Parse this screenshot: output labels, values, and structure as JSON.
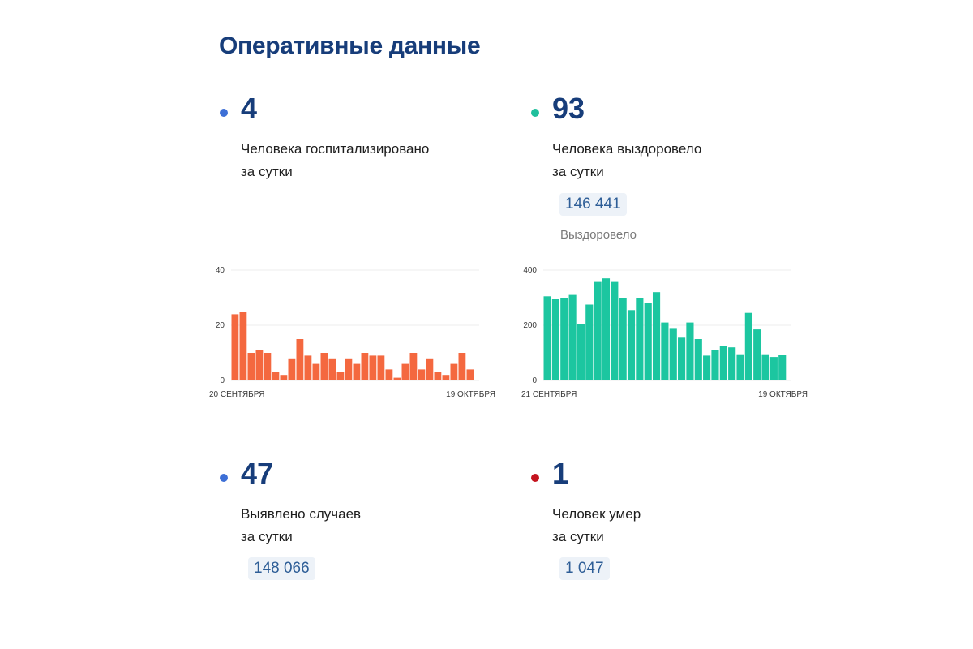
{
  "page_title": "Оперативные данные",
  "colors": {
    "blue_dot": "#3d6fd6",
    "teal_dot": "#1fbf9c",
    "red_dot": "#c4141e",
    "orange_bar": "#f4683f",
    "teal_bar": "#1cc6a0",
    "grid": "#ececec"
  },
  "hospitalized": {
    "value": "4",
    "desc_line1": "Человека госпитализировано",
    "desc_line2": "за сутки"
  },
  "recovered": {
    "value": "93",
    "desc_line1": "Человека выздоровело",
    "desc_line2": "за сутки",
    "total": "146 441",
    "total_label": "Выздоровело"
  },
  "cases": {
    "value": "47",
    "desc_line1": "Выявлено случаев",
    "desc_line2": "за сутки",
    "total": "148 066"
  },
  "deaths": {
    "value": "1",
    "desc_line1": "Человек умер",
    "desc_line2": "за сутки",
    "total": "1 047"
  },
  "chart_data": [
    {
      "type": "bar",
      "title": "",
      "x_start_label": "20 СЕНТЯБРЯ",
      "x_end_label": "19 ОКТЯБРЯ",
      "y_ticks": [
        0,
        20,
        40
      ],
      "ylim": [
        0,
        40
      ],
      "grid": true,
      "values": [
        24,
        25,
        10,
        11,
        10,
        3,
        2,
        8,
        15,
        9,
        6,
        10,
        8,
        3,
        8,
        6,
        10,
        9,
        9,
        4,
        1,
        6,
        10,
        4,
        8,
        3,
        2,
        6,
        10,
        4
      ]
    },
    {
      "type": "bar",
      "title": "",
      "x_start_label": "21 СЕНТЯБРЯ",
      "x_end_label": "19 ОКТЯБРЯ",
      "y_ticks": [
        0,
        200,
        400
      ],
      "ylim": [
        0,
        400
      ],
      "grid": true,
      "values": [
        305,
        295,
        300,
        310,
        205,
        275,
        360,
        370,
        360,
        300,
        255,
        300,
        280,
        320,
        210,
        190,
        155,
        210,
        150,
        90,
        110,
        125,
        120,
        95,
        245,
        185,
        95,
        85,
        93
      ]
    }
  ]
}
